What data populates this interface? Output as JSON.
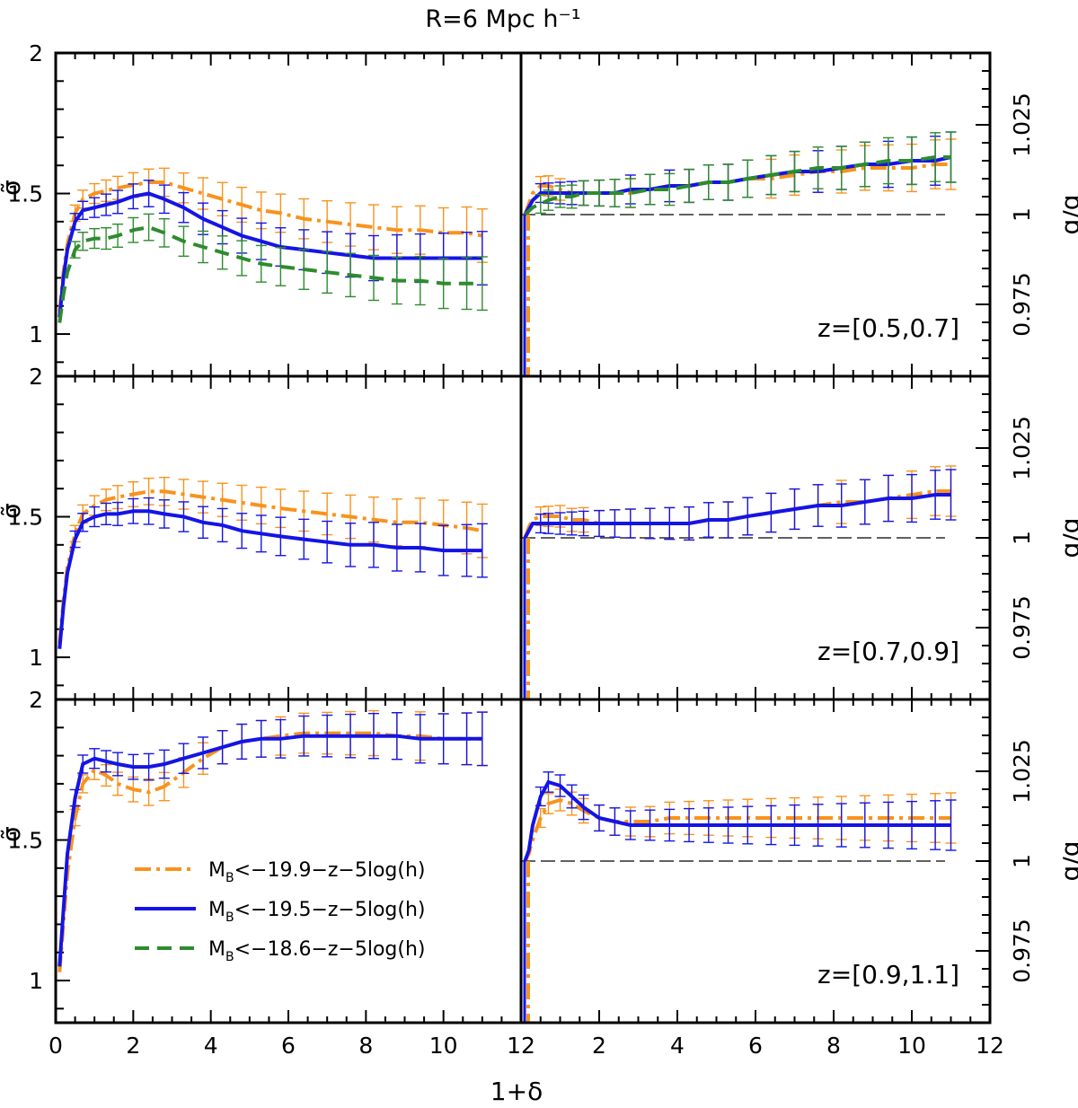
{
  "chart_data": {
    "type": "line",
    "title": "R=6 Mpc h⁻¹",
    "xlabel": "1+δ",
    "ylabel_left": "σ̃",
    "ylabel_right": "b̃/b̂",
    "grid": false,
    "legend_position": "bottom-left of lower-left panel",
    "xlim": [
      0,
      12
    ],
    "ylim_left": [
      0.85,
      2.0
    ],
    "ylim_right": [
      0.955,
      1.045
    ],
    "x_tick_labels_left": [
      "0",
      "2",
      "4",
      "6",
      "8",
      "10",
      "12"
    ],
    "x_tick_labels_right": [
      "2",
      "4",
      "6",
      "8",
      "10",
      "12"
    ],
    "y_tick_labels_left": [
      "1",
      "1.5",
      "2"
    ],
    "y_tick_labels_right": [
      "0.975",
      "1",
      "1.025"
    ],
    "legend": [
      {
        "name": "M_B<−19.9−z−5log(h)",
        "main": "M",
        "sub": "B",
        "rest": "<−19.9−z−5log(h)",
        "color": "#F7931E",
        "style": "dashdot"
      },
      {
        "name": "M_B<−19.5−z−5log(h)",
        "main": "M",
        "sub": "B",
        "rest": "<−19.5−z−5log(h)",
        "color": "#1414E6",
        "style": "solid"
      },
      {
        "name": "M_B<−18.6−z−5log(h)",
        "main": "M",
        "sub": "B",
        "rest": "<−18.6−z−5log(h)",
        "color": "#2E8B2E",
        "style": "dashed"
      }
    ],
    "x": [
      0.1,
      0.2,
      0.3,
      0.5,
      0.7,
      1.0,
      1.3,
      1.6,
      2.0,
      2.4,
      2.8,
      3.3,
      3.8,
      4.3,
      4.8,
      5.3,
      5.8,
      6.4,
      7.0,
      7.6,
      8.2,
      8.8,
      9.4,
      10.0,
      10.6,
      11.0
    ],
    "panels": [
      {
        "z_label": "z=[0.5,0.7]",
        "sigma": [
          {
            "name": "M_B<−19.9−z−5log(h)",
            "values": [
              1.08,
              1.22,
              1.32,
              1.43,
              1.48,
              1.5,
              1.51,
              1.52,
              1.53,
              1.54,
              1.54,
              1.52,
              1.5,
              1.48,
              1.46,
              1.44,
              1.43,
              1.41,
              1.4,
              1.39,
              1.38,
              1.37,
              1.37,
              1.36,
              1.36,
              1.35
            ]
          },
          {
            "name": "M_B<−19.5−z−5log(h)",
            "values": [
              1.06,
              1.2,
              1.3,
              1.4,
              1.44,
              1.45,
              1.46,
              1.47,
              1.49,
              1.5,
              1.48,
              1.45,
              1.41,
              1.38,
              1.35,
              1.33,
              1.31,
              1.3,
              1.29,
              1.28,
              1.27,
              1.27,
              1.27,
              1.27,
              1.27,
              1.27
            ]
          },
          {
            "name": "M_B<−18.6−z−5log(h)",
            "values": [
              1.04,
              1.14,
              1.22,
              1.3,
              1.33,
              1.34,
              1.34,
              1.35,
              1.37,
              1.38,
              1.36,
              1.33,
              1.31,
              1.29,
              1.27,
              1.25,
              1.24,
              1.23,
              1.22,
              1.21,
              1.2,
              1.19,
              1.19,
              1.18,
              1.18,
              1.18
            ]
          }
        ],
        "bias": [
          {
            "name": "M_B<−19.9−z−5log(h)",
            "values": [
              1.0,
              1.003,
              1.006,
              1.008,
              1.008,
              1.007,
              1.006,
              1.006,
              1.006,
              1.006,
              1.006,
              1.007,
              1.008,
              1.008,
              1.009,
              1.009,
              1.01,
              1.01,
              1.011,
              1.012,
              1.012,
              1.013,
              1.013,
              1.013,
              1.014,
              1.014
            ]
          },
          {
            "name": "M_B<−19.5−z−5log(h)",
            "values": [
              1.0,
              1.002,
              1.004,
              1.006,
              1.006,
              1.006,
              1.006,
              1.006,
              1.006,
              1.006,
              1.007,
              1.007,
              1.008,
              1.008,
              1.009,
              1.009,
              1.01,
              1.011,
              1.012,
              1.012,
              1.013,
              1.014,
              1.014,
              1.015,
              1.015,
              1.016
            ]
          },
          {
            "name": "M_B<−18.6−z−5log(h)",
            "values": [
              1.0,
              1.001,
              1.002,
              1.003,
              1.004,
              1.005,
              1.005,
              1.006,
              1.006,
              1.006,
              1.006,
              1.007,
              1.007,
              1.008,
              1.009,
              1.009,
              1.01,
              1.011,
              1.012,
              1.013,
              1.013,
              1.014,
              1.015,
              1.015,
              1.016,
              1.016
            ]
          }
        ]
      },
      {
        "z_label": "z=[0.7,0.9]",
        "sigma": [
          {
            "name": "M_B<−19.9−z−5log(h)",
            "values": [
              1.05,
              1.2,
              1.32,
              1.44,
              1.51,
              1.54,
              1.56,
              1.57,
              1.58,
              1.59,
              1.59,
              1.58,
              1.57,
              1.56,
              1.55,
              1.54,
              1.53,
              1.52,
              1.51,
              1.5,
              1.49,
              1.48,
              1.48,
              1.47,
              1.46,
              1.45
            ]
          },
          {
            "name": "M_B<−19.5−z−5log(h)",
            "values": [
              1.03,
              1.18,
              1.3,
              1.42,
              1.48,
              1.5,
              1.51,
              1.51,
              1.52,
              1.52,
              1.51,
              1.5,
              1.48,
              1.47,
              1.45,
              1.44,
              1.43,
              1.42,
              1.41,
              1.4,
              1.4,
              1.39,
              1.39,
              1.38,
              1.38,
              1.38
            ]
          }
        ],
        "bias": [
          {
            "name": "M_B<−19.9−z−5log(h)",
            "values": [
              1.0,
              1.003,
              1.005,
              1.006,
              1.006,
              1.006,
              1.005,
              1.005,
              1.004,
              1.004,
              1.004,
              1.004,
              1.004,
              1.004,
              1.005,
              1.005,
              1.006,
              1.007,
              1.008,
              1.009,
              1.01,
              1.01,
              1.011,
              1.012,
              1.013,
              1.013
            ]
          },
          {
            "name": "M_B<−19.5−z−5log(h)",
            "values": [
              1.0,
              1.002,
              1.004,
              1.004,
              1.004,
              1.004,
              1.004,
              1.004,
              1.004,
              1.004,
              1.004,
              1.004,
              1.004,
              1.004,
              1.005,
              1.005,
              1.006,
              1.007,
              1.008,
              1.009,
              1.009,
              1.01,
              1.011,
              1.011,
              1.012,
              1.012
            ]
          }
        ]
      },
      {
        "z_label": "z=[0.9,1.1]",
        "sigma": [
          {
            "name": "M_B<−19.9−z−5log(h)",
            "values": [
              1.03,
              1.2,
              1.38,
              1.58,
              1.7,
              1.75,
              1.73,
              1.7,
              1.68,
              1.67,
              1.69,
              1.74,
              1.79,
              1.83,
              1.85,
              1.86,
              1.87,
              1.88,
              1.88,
              1.88,
              1.88,
              1.87,
              1.87,
              1.86,
              1.86,
              1.86
            ]
          },
          {
            "name": "M_B<−19.5−z−5log(h)",
            "values": [
              1.05,
              1.25,
              1.45,
              1.65,
              1.77,
              1.79,
              1.78,
              1.77,
              1.76,
              1.76,
              1.77,
              1.79,
              1.81,
              1.83,
              1.85,
              1.86,
              1.86,
              1.87,
              1.87,
              1.87,
              1.87,
              1.87,
              1.86,
              1.86,
              1.86,
              1.86
            ]
          }
        ],
        "bias": [
          {
            "name": "M_B<−19.9−z−5log(h)",
            "values": [
              1.0,
              1.002,
              1.006,
              1.012,
              1.016,
              1.017,
              1.016,
              1.014,
              1.012,
              1.011,
              1.011,
              1.011,
              1.012,
              1.012,
              1.012,
              1.012,
              1.012,
              1.012,
              1.012,
              1.012,
              1.012,
              1.012,
              1.012,
              1.012,
              1.012,
              1.012
            ]
          },
          {
            "name": "M_B<−19.5−z−5log(h)",
            "values": [
              1.0,
              1.003,
              1.01,
              1.018,
              1.022,
              1.021,
              1.018,
              1.015,
              1.012,
              1.011,
              1.01,
              1.01,
              1.01,
              1.01,
              1.01,
              1.01,
              1.01,
              1.01,
              1.01,
              1.01,
              1.01,
              1.01,
              1.01,
              1.01,
              1.01,
              1.01
            ]
          }
        ]
      }
    ]
  }
}
